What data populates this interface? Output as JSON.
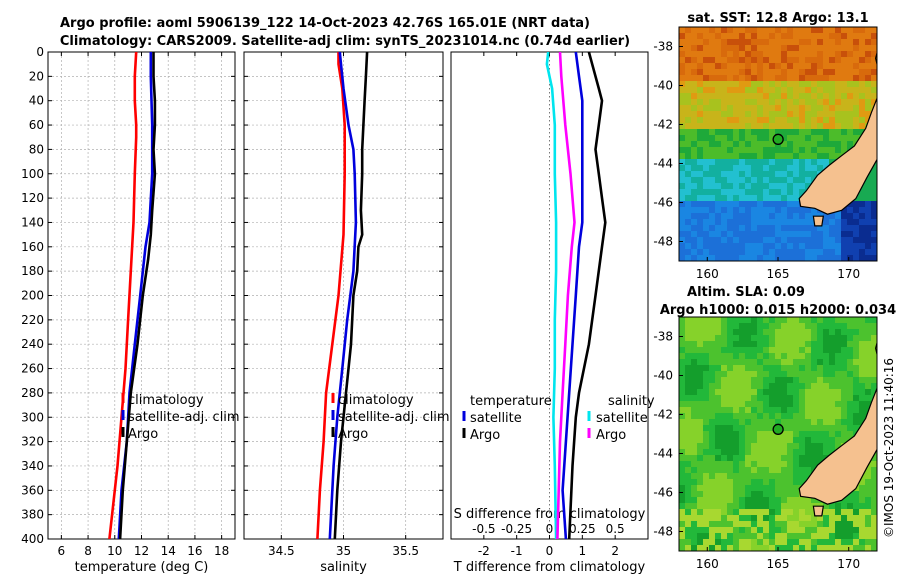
{
  "header": {
    "title_line1": "Argo profile: aoml 5906139_122 14-Oct-2023 42.76S 165.01E (NRT data)",
    "title_line2": "Climatology: CARS2009. Satellite-adj clim: synTS_20231014.nc (0.74d earlier)"
  },
  "colors": {
    "climatology": "#ff0000",
    "satellite": "#0000dd",
    "argo": "#000000",
    "satellite_s": "#00e5ee",
    "argo_s": "#ff00ff"
  },
  "chart_data": [
    {
      "type": "line",
      "name": "temperature-profile",
      "xlabel": "temperature (deg C)",
      "ylabel": "",
      "xlim": [
        5,
        19
      ],
      "ylim": [
        400,
        0
      ],
      "x_ticks": [
        6,
        8,
        10,
        12,
        14,
        16,
        18
      ],
      "y_ticks": [
        0,
        20,
        40,
        60,
        80,
        100,
        120,
        140,
        160,
        180,
        200,
        220,
        240,
        260,
        280,
        300,
        320,
        340,
        360,
        380,
        400
      ],
      "grid": true,
      "legend": [
        "climatology",
        "satellite-adj. clim",
        "Argo"
      ],
      "legend_placement": "lower-right",
      "series": [
        {
          "name": "climatology",
          "depth": [
            0,
            20,
            40,
            60,
            70,
            100,
            140,
            180,
            220,
            260,
            300,
            340,
            400
          ],
          "values": [
            11.6,
            11.5,
            11.5,
            11.6,
            11.6,
            11.5,
            11.4,
            11.2,
            11.0,
            10.8,
            10.5,
            10.2,
            9.6
          ]
        },
        {
          "name": "satellite-adj. clim",
          "depth": [
            0,
            20,
            60,
            100,
            140,
            160,
            200,
            240,
            280,
            320,
            360,
            400
          ],
          "values": [
            12.7,
            12.7,
            12.8,
            12.8,
            12.6,
            12.3,
            11.9,
            11.5,
            11.1,
            10.9,
            10.5,
            10.3
          ]
        },
        {
          "name": "Argo",
          "depth": [
            0,
            20,
            40,
            60,
            80,
            100,
            130,
            150,
            170,
            200,
            240,
            280,
            320,
            360,
            400
          ],
          "values": [
            12.9,
            12.9,
            13.0,
            13.0,
            12.9,
            13.0,
            12.8,
            12.7,
            12.5,
            12.1,
            11.7,
            11.2,
            10.9,
            10.6,
            10.4
          ]
        }
      ]
    },
    {
      "type": "line",
      "name": "salinity-profile",
      "xlabel": "salinity",
      "ylabel": "",
      "xlim": [
        34.2,
        35.8
      ],
      "ylim": [
        400,
        0
      ],
      "x_ticks": [
        34.5,
        35,
        35.5
      ],
      "y_ticks": [
        0,
        20,
        40,
        60,
        80,
        100,
        120,
        140,
        160,
        180,
        200,
        220,
        240,
        260,
        280,
        300,
        320,
        340,
        360,
        380,
        400
      ],
      "grid": true,
      "legend": [
        "climatology",
        "satellite-adj. clim",
        "Argo"
      ],
      "legend_placement": "lower-right",
      "series": [
        {
          "name": "climatology",
          "depth": [
            0,
            10,
            30,
            60,
            100,
            150,
            200,
            240,
            280,
            320,
            360,
            400
          ],
          "values": [
            34.96,
            34.96,
            34.99,
            35.01,
            35.01,
            35.0,
            34.96,
            34.91,
            34.86,
            34.84,
            34.81,
            34.79
          ]
        },
        {
          "name": "satellite-adj. clim",
          "depth": [
            0,
            10,
            30,
            60,
            80,
            100,
            140,
            180,
            220,
            260,
            300,
            340,
            400
          ],
          "values": [
            34.97,
            34.98,
            35.0,
            35.04,
            35.08,
            35.09,
            35.1,
            35.08,
            35.03,
            34.99,
            34.95,
            34.92,
            34.89
          ]
        },
        {
          "name": "Argo",
          "depth": [
            0,
            20,
            40,
            60,
            80,
            100,
            130,
            150,
            160,
            180,
            200,
            240,
            280,
            320,
            360,
            400
          ],
          "values": [
            35.19,
            35.18,
            35.17,
            35.16,
            35.15,
            35.15,
            35.14,
            35.15,
            35.12,
            35.11,
            35.08,
            35.06,
            35.02,
            34.98,
            34.95,
            34.93
          ]
        }
      ]
    },
    {
      "type": "line",
      "name": "difference-profile",
      "xlabel": "T difference from climatology",
      "xlabel_top": "S difference from climatology",
      "xlim": [
        -3,
        3
      ],
      "ylim": [
        400,
        0
      ],
      "x_ticks": [
        -2,
        -1,
        0,
        1,
        2
      ],
      "x_ticks_top": [
        "-0.5",
        "-0.25",
        "0",
        "0.25",
        "0.5"
      ],
      "grid": false,
      "legend": [
        {
          "group": "temperature",
          "items": [
            "satellite",
            "Argo"
          ]
        },
        {
          "group": "salinity",
          "items": [
            "satellite",
            "Argo"
          ]
        }
      ],
      "series": [
        {
          "name": "T satellite",
          "depth": [
            0,
            20,
            40,
            60,
            80,
            100,
            140,
            160,
            200,
            240,
            280,
            320,
            360,
            400
          ],
          "values": [
            0.8,
            0.9,
            1.0,
            1.0,
            1.0,
            1.0,
            1.0,
            0.9,
            0.8,
            0.7,
            0.6,
            0.5,
            0.4,
            0.5
          ]
        },
        {
          "name": "T Argo",
          "depth": [
            0,
            10,
            30,
            40,
            60,
            80,
            100,
            120,
            140,
            160,
            200,
            240,
            280,
            300,
            340,
            400
          ],
          "values": [
            1.2,
            1.3,
            1.5,
            1.6,
            1.5,
            1.4,
            1.5,
            1.6,
            1.7,
            1.6,
            1.4,
            1.2,
            0.9,
            0.8,
            0.7,
            0.6
          ]
        },
        {
          "name": "S satellite",
          "depth": [
            0,
            10,
            30,
            60,
            100,
            140,
            180,
            220,
            260,
            300,
            340,
            400
          ],
          "values": [
            -0.01,
            -0.02,
            0.02,
            0.04,
            0.04,
            0.05,
            0.05,
            0.04,
            0.04,
            0.03,
            0.04,
            0.05
          ]
        },
        {
          "name": "S Argo",
          "depth": [
            0,
            20,
            60,
            100,
            140,
            160,
            200,
            240,
            280,
            320,
            360,
            400
          ],
          "values": [
            0.08,
            0.09,
            0.12,
            0.16,
            0.19,
            0.17,
            0.14,
            0.12,
            0.1,
            0.08,
            0.07,
            0.06
          ]
        }
      ]
    },
    {
      "type": "heatmap",
      "name": "sst-map",
      "title": "sat. SST: 12.8 Argo: 13.1",
      "xlim": [
        158,
        172
      ],
      "ylim": [
        -49,
        -37
      ],
      "x_ticks": [
        160,
        165,
        170
      ],
      "y_ticks": [
        -38,
        -40,
        -42,
        -44,
        -46,
        -48
      ],
      "argo_position": {
        "lon": 165.01,
        "lat": -42.76
      }
    },
    {
      "type": "heatmap",
      "name": "sla-map",
      "title_line1": "Altim. SLA: 0.09",
      "title_line2": "Argo h1000: 0.015 h2000: 0.034",
      "xlim": [
        158,
        172
      ],
      "ylim": [
        -49,
        -37
      ],
      "x_ticks": [
        160,
        165,
        170
      ],
      "y_ticks": [
        -38,
        -40,
        -42,
        -44,
        -46,
        -48
      ],
      "argo_position": {
        "lon": 165.01,
        "lat": -42.76
      }
    }
  ],
  "legend_labels": {
    "climatology": "climatology",
    "satellite_adj": "satellite-adj. clim",
    "argo": "Argo",
    "temperature": "temperature",
    "salinity": "salinity",
    "satellite": "satellite",
    "argo_short": "Argo"
  },
  "credit": "©IMOS 19-Oct-2023 11:40:16"
}
